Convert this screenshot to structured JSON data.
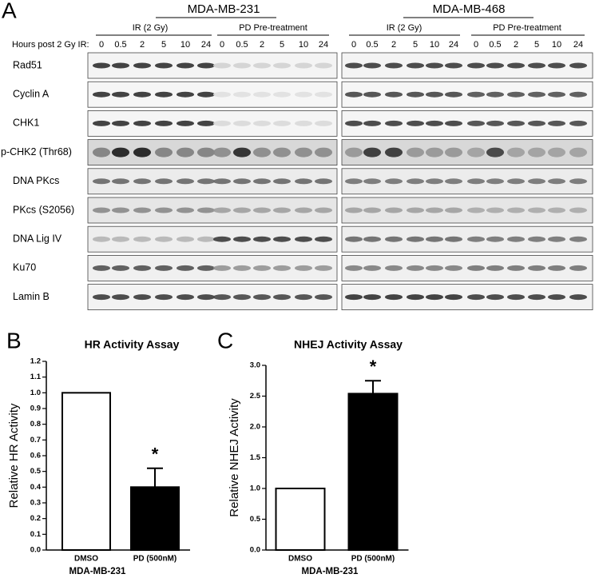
{
  "blot": {
    "panel_label": "A",
    "cell_lines": [
      "MDA-MB-231",
      "MDA-MB-468"
    ],
    "treatments": [
      "IR (2 Gy)",
      "PD Pre-treatment"
    ],
    "hours_label": "Hours post 2 Gy IR:",
    "hours": [
      "0",
      "0.5",
      "2",
      "5",
      "10",
      "24"
    ],
    "proteins": [
      "Rad51",
      "Cyclin A",
      "CHK1",
      "p-CHK2 (Thr68)",
      "DNA PKcs",
      "PKcs (S2056)",
      "DNA Lig IV",
      "Ku70",
      "Lamin B"
    ]
  },
  "chart_data": [
    {
      "type": "bar",
      "panel_label": "B",
      "title": "HR Activity Assay",
      "y_label": "Relative HR Activity",
      "x_label": "MDA-MB-231",
      "categories": [
        "DMSO",
        "PD (500nM)"
      ],
      "values": [
        1.0,
        0.4
      ],
      "errors": [
        null,
        0.12
      ],
      "colors": [
        "#ffffff",
        "#000000"
      ],
      "annotation": "*",
      "ylim": [
        0,
        1.2
      ],
      "yticks": [
        {
          "value": 0,
          "label": "0.0"
        },
        0.1,
        0.2,
        0.3,
        0.4,
        0.5,
        0.6,
        0.7,
        0.8,
        0.9,
        {
          "value": 1,
          "label": "1.0"
        },
        1.1,
        1.2
      ]
    },
    {
      "type": "bar",
      "panel_label": "C",
      "title": "NHEJ Activity Assay",
      "y_label": "Relative NHEJ Activity",
      "x_label": "MDA-MB-231",
      "categories": [
        "DMSO",
        "PD (500nM)"
      ],
      "values": [
        1.0,
        2.54
      ],
      "errors": [
        null,
        0.21
      ],
      "colors": [
        "#ffffff",
        "#000000"
      ],
      "annotation": "*",
      "ylim": [
        0,
        3
      ],
      "yticks": [
        {
          "value": 0,
          "label": "0.0"
        },
        0.5,
        {
          "value": 1,
          "label": "1.0"
        },
        1.5,
        {
          "value": 2,
          "label": "2.0"
        },
        2.5,
        {
          "value": 3,
          "label": "3.0"
        }
      ]
    }
  ]
}
